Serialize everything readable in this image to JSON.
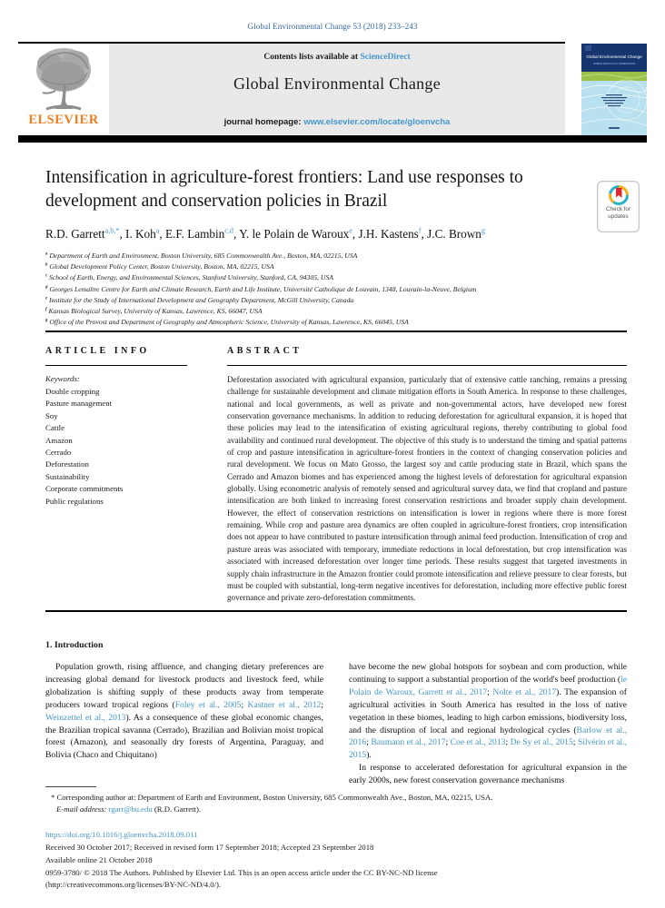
{
  "colors": {
    "link_blue": "#4596cc",
    "citation_blue": "#3b6ba5",
    "elsevier_orange": "#ef7d22",
    "cover_navy": "#16356e",
    "cover_green": "#9cc24a",
    "cover_lightblue": "#b9e0ee"
  },
  "citation": "Global Environmental Change 53 (2018) 233–243",
  "header": {
    "contents_prefix": "Contents lists available at ",
    "sciencedirect": "ScienceDirect",
    "journal_name": "Global Environmental Change",
    "homepage_label": "journal homepage: ",
    "homepage_url": "www.elsevier.com/locate/gloenvcha",
    "elsevier_word": "ELSEVIER",
    "cover_title": "Global Environmental Change",
    "cover_subtitle": "HUMAN AND POLICY DIMENSIONS"
  },
  "badge": {
    "line1": "Check for",
    "line2": "updates"
  },
  "article": {
    "title": "Intensification in agriculture-forest frontiers: Land use responses to development and conservation policies in Brazil",
    "authors": [
      {
        "t": "R.D. Garrett"
      },
      {
        "t": "a,b,*",
        "sup": true,
        "c": "link"
      },
      {
        "t": ", I. Koh"
      },
      {
        "t": "a",
        "sup": true,
        "c": "link"
      },
      {
        "t": ", E.F. Lambin"
      },
      {
        "t": "c,d",
        "sup": true,
        "c": "link"
      },
      {
        "t": ", Y. le Polain de Waroux"
      },
      {
        "t": "e",
        "sup": true,
        "c": "link"
      },
      {
        "t": ", J.H. Kastens"
      },
      {
        "t": "f",
        "sup": true,
        "c": "link"
      },
      {
        "t": ", J.C. Brown"
      },
      {
        "t": "g",
        "sup": true,
        "c": "link"
      }
    ],
    "affiliations": [
      {
        "sup": "a",
        "text": " Department of Earth and Environment, Boston University, 685 Commonwealth Ave., Boston, MA, 02215, USA"
      },
      {
        "sup": "b",
        "text": " Global Development Policy Center, Boston University, Boston, MA, 02215, USA"
      },
      {
        "sup": "c",
        "text": " School of Earth, Energy, and Environmental Sciences, Stanford University, Stanford, CA, 94305, USA"
      },
      {
        "sup": "d",
        "text": " Georges Lemaître Centre for Earth and Climate Research, Earth and Life Institute, Université Catholique de Louvain, 1348, Louvain-la-Neuve, Belgium"
      },
      {
        "sup": "e",
        "text": " Institute for the Study of International Development and Geography Department, McGill University, Canada"
      },
      {
        "sup": "f",
        "text": " Kansas Biological Survey, University of Kansas, Lawrence, KS, 66047, USA"
      },
      {
        "sup": "g",
        "text": " Office of the Provost and Department of Geography and Atmospheric Science, University of Kansas, Lawrence, KS, 66045, USA"
      }
    ]
  },
  "article_info": {
    "heading": "ARTICLE INFO",
    "keywords_label": "Keywords:",
    "keywords": [
      "Double cropping",
      "Pasture management",
      "Soy",
      "Cattle",
      "Amazon",
      "Cerrado",
      "Deforestation",
      "Sustainability",
      "Corporate commitments",
      "Public regulations"
    ]
  },
  "abstract": {
    "heading": "ABSTRACT",
    "text": "Deforestation associated with agricultural expansion, particularly that of extensive cattle ranching, remains a pressing challenge for sustainable development and climate mitigation efforts in South America. In response to these challenges, national and local governments, as well as private and non-governmental actors, have developed new forest conservation governance mechanisms. In addition to reducing deforestation for agricultural expansion, it is hoped that these policies may lead to the intensification of existing agricultural regions, thereby contributing to global food availability and continued rural development. The objective of this study is to understand the timing and spatial patterns of crop and pasture intensification in agriculture-forest frontiers in the context of changing conservation policies and rural development. We focus on Mato Grosso, the largest soy and cattle producing state in Brazil, which spans the Cerrado and Amazon biomes and has experienced among the highest levels of deforestation for agricultural expansion globally. Using econometric analysis of remotely sensed and agricultural survey data, we find that cropland and pasture intensification are both linked to increasing forest conservation restrictions and broader supply chain development. However, the effect of conservation restrictions on intensification is lower in regions where there is more forest remaining. While crop and pasture area dynamics are often coupled in agriculture-forest frontiers, crop intensification does not appear to have contributed to pasture intensification through animal feed production. Intensification of crop and pasture areas was associated with temporary, immediate reductions in local deforestation, but crop intensification was associated with increased deforestation over longer time periods. These results suggest that targeted investments in supply chain infrastructure in the Amazon frontier could promote intensification and relieve pressure to clear forests, but must be coupled with substantial, long-term negative incentives for deforestation, including more effective public forest governance and private zero-deforestation commitments."
  },
  "introduction": {
    "heading": "1. Introduction",
    "col1_p1": [
      {
        "t": "Population growth, rising affluence, and changing dietary preferences are increasing global demand for livestock products and livestock feed, while globalization is shifting supply of these products away from temperate producers toward tropical regions ("
      },
      {
        "t": "Foley et al., 2005",
        "c": "link"
      },
      {
        "t": "; "
      },
      {
        "t": "Kastner et al., 2012",
        "c": "link"
      },
      {
        "t": "; "
      },
      {
        "t": "Weinzettel et al., 2013",
        "c": "link"
      },
      {
        "t": "). As a consequence of these global economic changes, the Brazilian tropical savanna (Cerrado), Brazilian and Bolivian moist tropical forest (Amazon), and seasonally dry forests of Argentina, Paraguay, and Bolivia (Chaco and Chiquitano)"
      }
    ],
    "col2_p1": [
      {
        "t": "have become the new global hotspots for soybean and corn production, while continuing to support a substantial proportion of the world's beef production ("
      },
      {
        "t": "le Polain de Waroux, Garrett et al., 2017",
        "c": "link"
      },
      {
        "t": "; "
      },
      {
        "t": "Nolte et al., 2017",
        "c": "link"
      },
      {
        "t": "). The expansion of agricultural activities in South America has resulted in the loss of native vegetation in these biomes, leading to high carbon emissions, biodiversity loss, and the disruption of local and regional hydrological cycles ("
      },
      {
        "t": "Barlow et al., 2016",
        "c": "link"
      },
      {
        "t": "; "
      },
      {
        "t": "Baumann et al., 2017",
        "c": "link"
      },
      {
        "t": "; "
      },
      {
        "t": "Coe et al., 2013",
        "c": "link"
      },
      {
        "t": "; "
      },
      {
        "t": "De Sy et al., 2015",
        "c": "link"
      },
      {
        "t": "; "
      },
      {
        "t": "Silvério et al., 2015",
        "c": "link"
      },
      {
        "t": ")."
      }
    ],
    "col2_p2": [
      {
        "t": "In response to accelerated deforestation for agricultural expansion in the early 2000s, new forest conservation governance mechanisms"
      }
    ]
  },
  "footnote": {
    "line1": [
      {
        "t": "* Corresponding author at: Department of Earth and Environment, Boston University, 685 Commonwealth Ave., Boston, MA, 02215, USA."
      }
    ],
    "line2": [
      {
        "t": "E-mail address: ",
        "c": "it"
      },
      {
        "t": "rgarr@bu.edu",
        "c": "link"
      },
      {
        "t": " (R.D. Garrett)."
      }
    ]
  },
  "footer": {
    "doi": "https://doi.org/10.1016/j.gloenvcha.2018.09.011",
    "received": "Received 30 October 2017; Received in revised form 17 September 2018; Accepted 23 September 2018",
    "available": "Available online 21 October 2018",
    "issn_line": "0959-3780/ © 2018 The Authors. Published by Elsevier Ltd. This is an open access article under the CC BY-NC-ND license",
    "license_line": "(http://creativecommons.org/licenses/BY-NC-ND/4.0/)."
  }
}
